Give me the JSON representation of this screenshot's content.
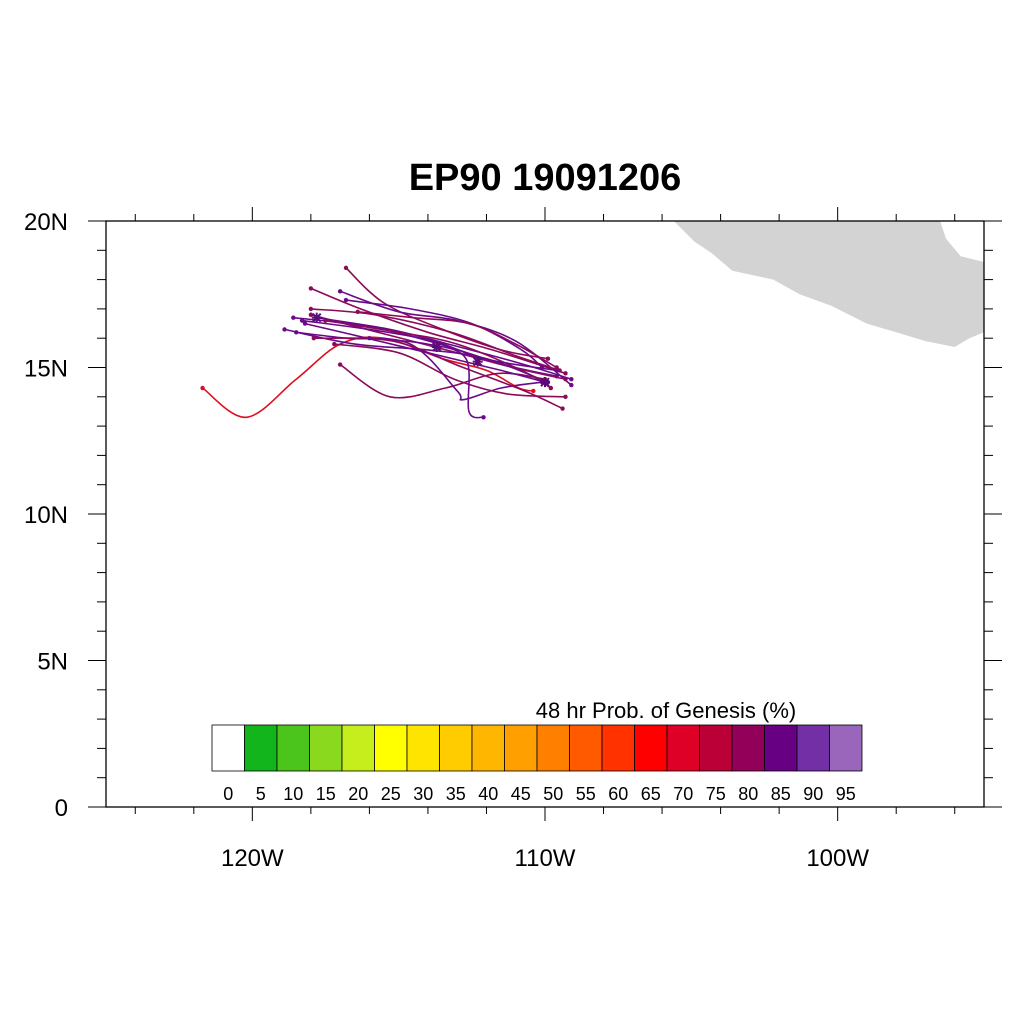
{
  "title": "EP90 19091206",
  "chart_data": {
    "type": "map",
    "lon_range": [
      -125,
      -95
    ],
    "lat_range": [
      0,
      20
    ],
    "x_ticks": [
      {
        "lon": -120,
        "label": "120W"
      },
      {
        "lon": -110,
        "label": "110W"
      },
      {
        "lon": -100,
        "label": "100W"
      }
    ],
    "y_ticks": [
      {
        "lat": 0,
        "label": "0"
      },
      {
        "lat": 5,
        "label": "5N"
      },
      {
        "lat": 10,
        "label": "10N"
      },
      {
        "lat": 15,
        "label": "15N"
      },
      {
        "lat": 20,
        "label": "20N"
      }
    ],
    "land_color": "#d3d3d3",
    "land_polygon": [
      [
        -105.6,
        20
      ],
      [
        -104.9,
        19.3
      ],
      [
        -104.3,
        18.9
      ],
      [
        -103.6,
        18.3
      ],
      [
        -102.2,
        18.0
      ],
      [
        -101.3,
        17.5
      ],
      [
        -100.2,
        17.1
      ],
      [
        -99.0,
        16.5
      ],
      [
        -98.0,
        16.2
      ],
      [
        -97.0,
        15.9
      ],
      [
        -96.0,
        15.7
      ],
      [
        -95.5,
        16.0
      ],
      [
        -95.0,
        16.2
      ],
      [
        -95.0,
        18.6
      ],
      [
        -95.8,
        18.8
      ],
      [
        -96.3,
        19.4
      ],
      [
        -96.5,
        20
      ]
    ],
    "colorbar": {
      "title": "48 hr Prob. of Genesis (%)",
      "labels": [
        "0",
        "5",
        "10",
        "15",
        "20",
        "25",
        "30",
        "35",
        "40",
        "45",
        "50",
        "55",
        "60",
        "65",
        "70",
        "75",
        "80",
        "85",
        "90",
        "95"
      ],
      "colors": [
        "#ffffff",
        "#13b51c",
        "#4bc51c",
        "#8ad91e",
        "#c6ee1c",
        "#ffff00",
        "#ffe400",
        "#ffcc00",
        "#ffb600",
        "#ffa000",
        "#ff8000",
        "#ff5a00",
        "#ff3200",
        "#ff0000",
        "#de0027",
        "#bb0038",
        "#930059",
        "#680083",
        "#7330a6",
        "#9966bb"
      ]
    },
    "tracks": [
      {
        "color": "#dd1020",
        "points": [
          [
            -121.7,
            14.3
          ],
          [
            -120.2,
            13.3
          ],
          [
            -118.5,
            14.6
          ],
          [
            -117.0,
            15.8
          ],
          [
            -115.5,
            16.0
          ],
          [
            -113.5,
            15.3
          ],
          [
            -112.0,
            14.9
          ],
          [
            -110.9,
            14.3
          ],
          [
            -110.4,
            14.2
          ]
        ]
      },
      {
        "color": "#8b0a5a",
        "points": [
          [
            -116.8,
            18.4
          ],
          [
            -115.5,
            17.2
          ],
          [
            -113.5,
            16.3
          ],
          [
            -111.5,
            15.6
          ],
          [
            -109.9,
            15.3
          ]
        ]
      },
      {
        "color": "#8b0a5a",
        "points": [
          [
            -118.0,
            17.7
          ],
          [
            -116.3,
            17.0
          ],
          [
            -114.0,
            16.2
          ],
          [
            -111.8,
            15.6
          ],
          [
            -109.3,
            14.8
          ]
        ]
      },
      {
        "color": "#6a0a8a",
        "points": [
          [
            -117.0,
            17.6
          ],
          [
            -115.0,
            16.9
          ],
          [
            -113.0,
            16.6
          ],
          [
            -111.0,
            15.9
          ],
          [
            -109.1,
            14.4
          ]
        ]
      },
      {
        "color": "#6a0a8a",
        "points": [
          [
            -116.8,
            17.3
          ],
          [
            -114.6,
            17.0
          ],
          [
            -112.5,
            16.5
          ],
          [
            -110.8,
            15.6
          ],
          [
            -110.1,
            15.0
          ]
        ]
      },
      {
        "color": "#8b0a5a",
        "points": [
          [
            -118.0,
            17.0
          ],
          [
            -115.8,
            16.8
          ],
          [
            -113.2,
            16.2
          ],
          [
            -111.0,
            15.4
          ],
          [
            -109.5,
            14.9
          ]
        ]
      },
      {
        "color": "#6a0a8a",
        "points": [
          [
            -118.6,
            16.7
          ],
          [
            -116.0,
            16.4
          ],
          [
            -113.6,
            15.8
          ],
          [
            -111.4,
            15.1
          ],
          [
            -109.6,
            14.7
          ]
        ]
      },
      {
        "color": "#8b0a5a",
        "points": [
          [
            -118.0,
            16.8
          ],
          [
            -115.7,
            16.2
          ],
          [
            -113.0,
            15.5
          ],
          [
            -111.1,
            15.0
          ],
          [
            -109.3,
            14.6
          ]
        ]
      },
      {
        "color": "#6a0a8a",
        "points": [
          [
            -117.8,
            16.7
          ],
          [
            -115.3,
            16.3
          ],
          [
            -113.3,
            15.8
          ],
          [
            -110.7,
            15.1
          ],
          [
            -109.1,
            14.6
          ]
        ]
      },
      {
        "color": "#8b0a5a",
        "points": [
          [
            -117.5,
            16.6
          ],
          [
            -115.0,
            16.2
          ],
          [
            -113.0,
            15.8
          ],
          [
            -110.8,
            14.9
          ],
          [
            -109.8,
            14.3
          ]
        ]
      },
      {
        "color": "#6a0a8a",
        "points": [
          [
            -118.9,
            16.3
          ],
          [
            -116.5,
            15.8
          ],
          [
            -114.0,
            15.6
          ],
          [
            -112.0,
            15.3
          ],
          [
            -109.9,
            14.5
          ]
        ]
      },
      {
        "color": "#8b0a5a",
        "points": [
          [
            -117.0,
            15.1
          ],
          [
            -115.3,
            14.0
          ],
          [
            -113.4,
            14.3
          ],
          [
            -111.6,
            14.8
          ],
          [
            -110.0,
            14.6
          ]
        ]
      },
      {
        "color": "#6a0a8a",
        "points": [
          [
            -118.5,
            16.2
          ],
          [
            -116.8,
            16.0
          ],
          [
            -114.6,
            15.8
          ],
          [
            -113.0,
            14.2
          ],
          [
            -112.8,
            13.9
          ],
          [
            -111.5,
            14.3
          ],
          [
            -110.1,
            14.5
          ]
        ]
      },
      {
        "color": "#8b0a5a",
        "points": [
          [
            -117.2,
            15.8
          ],
          [
            -115.0,
            15.5
          ],
          [
            -113.1,
            14.6
          ],
          [
            -111.3,
            14.1
          ],
          [
            -109.3,
            14.0
          ]
        ]
      },
      {
        "color": "#6a0a8a",
        "points": [
          [
            -116.0,
            16.0
          ],
          [
            -114.0,
            15.8
          ],
          [
            -112.7,
            15.3
          ],
          [
            -112.6,
            13.5
          ],
          [
            -112.1,
            13.3
          ]
        ]
      },
      {
        "color": "#8b0a5a",
        "points": [
          [
            -117.9,
            16.0
          ],
          [
            -115.2,
            15.9
          ],
          [
            -112.8,
            15.0
          ],
          [
            -110.7,
            14.2
          ],
          [
            -109.4,
            13.6
          ]
        ]
      },
      {
        "color": "#6a0a8a",
        "points": [
          [
            -118.3,
            16.6
          ],
          [
            -116.0,
            16.3
          ],
          [
            -113.8,
            15.9
          ],
          [
            -112.1,
            15.3
          ],
          [
            -109.6,
            14.9
          ]
        ]
      },
      {
        "color": "#8b0a5a",
        "points": [
          [
            -116.4,
            16.9
          ],
          [
            -114.5,
            16.7
          ],
          [
            -112.6,
            16.5
          ],
          [
            -111.0,
            15.8
          ],
          [
            -109.6,
            15.0
          ]
        ]
      },
      {
        "color": "#6a0a8a",
        "points": [
          [
            -118.2,
            16.5
          ],
          [
            -116.5,
            16.1
          ],
          [
            -114.0,
            15.5
          ],
          [
            -111.5,
            14.9
          ],
          [
            -110.0,
            14.5
          ]
        ]
      }
    ],
    "storm_markers": [
      [
        -117.8,
        16.7
      ],
      [
        -113.7,
        15.7
      ],
      [
        -112.3,
        15.2
      ],
      [
        -110.0,
        14.5
      ]
    ]
  }
}
